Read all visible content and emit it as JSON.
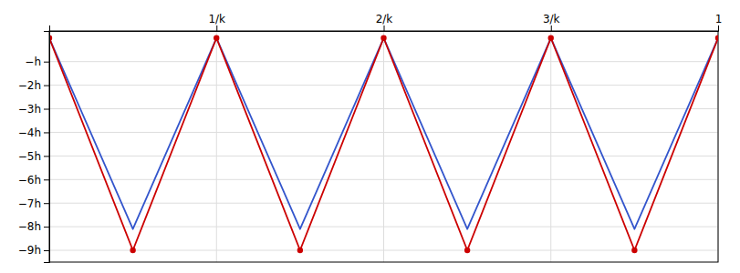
{
  "chart_data": {
    "type": "line",
    "x": [
      0,
      0.125,
      0.25,
      0.375,
      0.5,
      0.625,
      0.75,
      0.875,
      1.0
    ],
    "series": [
      {
        "color": "#3355cc",
        "values": [
          0,
          -8.1,
          0,
          -8.1,
          0,
          -8.1,
          0,
          -8.1,
          0
        ]
      },
      {
        "color": "#cc0000",
        "marker": "circle",
        "values": [
          0,
          -9,
          0,
          -9,
          0,
          -9,
          0,
          -9,
          0
        ]
      }
    ],
    "xlim": [
      0.0,
      1.0
    ],
    "xticks": [
      {
        "value": 0.25,
        "label": "1/k"
      },
      {
        "value": 0.5,
        "label": "2/k"
      },
      {
        "value": 0.75,
        "label": "3/k"
      },
      1
    ],
    "ylim": [
      -9.5,
      0.3
    ],
    "yticks": [
      {
        "value": -1,
        "label": "−h"
      },
      {
        "value": -2,
        "label": "−2h"
      },
      {
        "value": -3,
        "label": "−3h"
      },
      {
        "value": -4,
        "label": "−4h"
      },
      {
        "value": -5,
        "label": "−5h"
      },
      {
        "value": -6,
        "label": "−6h"
      },
      {
        "value": -7,
        "label": "−7h"
      },
      {
        "value": -8,
        "label": "−8h"
      },
      {
        "value": -9,
        "label": "−9h"
      }
    ],
    "grid": true
  }
}
